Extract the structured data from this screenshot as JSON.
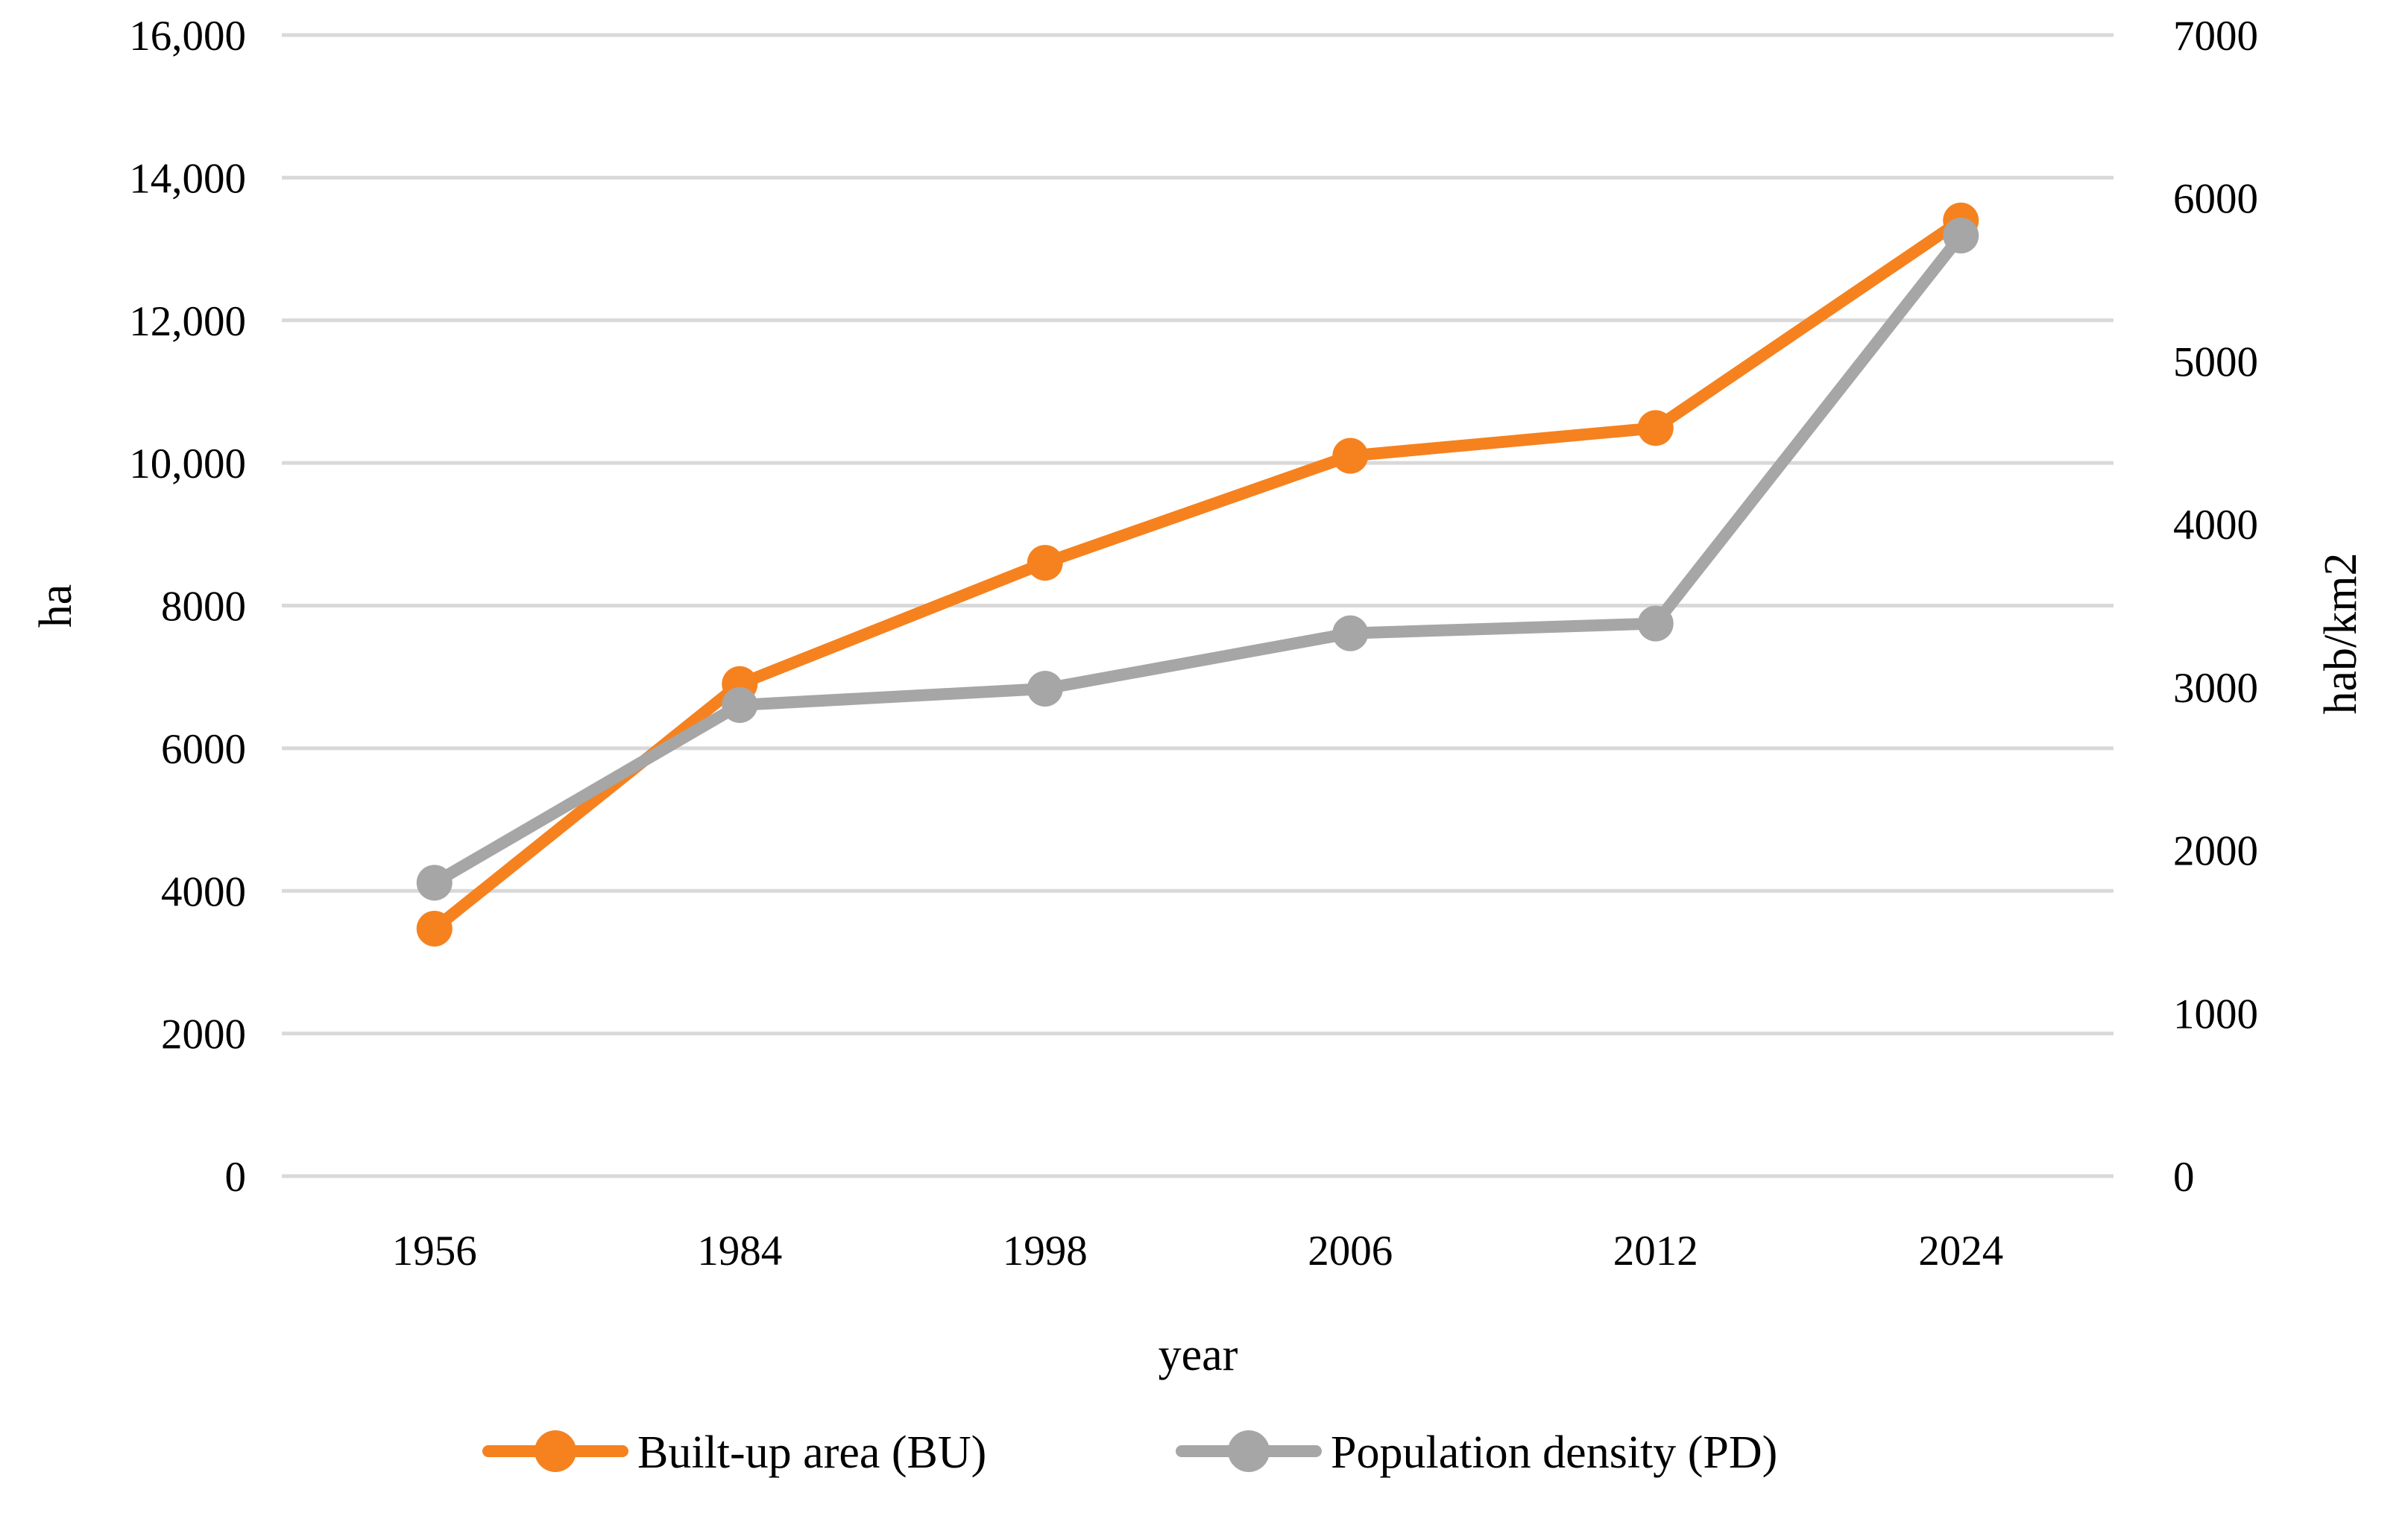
{
  "figure": {
    "x_axis": {
      "title": "year",
      "categories": [
        "1956",
        "1984",
        "1998",
        "2006",
        "2012",
        "2024"
      ]
    },
    "left_axis": {
      "title": "ha",
      "min": 0,
      "max": 16000,
      "step": 2000,
      "tick_labels": [
        "0",
        "2000",
        "4000",
        "6000",
        "8000",
        "10,000",
        "12,000",
        "14,000",
        "16,000"
      ]
    },
    "right_axis": {
      "title": "hab/km2",
      "min": 0,
      "max": 7000,
      "step": 1000,
      "tick_labels": [
        "0",
        "1000",
        "2000",
        "3000",
        "4000",
        "5000",
        "6000",
        "7000"
      ]
    },
    "legend": [
      {
        "label": "Built-up area (BU)",
        "color": "#F5821F"
      },
      {
        "label": "Population density (PD)",
        "color": "#A6A6A6"
      }
    ]
  },
  "chart_data": {
    "type": "line",
    "title": "",
    "xlabel": "year",
    "ylabel_left": "ha",
    "ylabel_right": "hab/km2",
    "categories": [
      1956,
      1984,
      1998,
      2006,
      2012,
      2024
    ],
    "series": [
      {
        "name": "Built-up area (BU)",
        "axis": "left",
        "color": "#F5821F",
        "marker": "circle",
        "values": [
          3470,
          6900,
          8600,
          10100,
          10490,
          13400
        ]
      },
      {
        "name": "Population density (PD)",
        "axis": "right",
        "color": "#A6A6A6",
        "marker": "circle",
        "values": [
          1800,
          2890,
          2990,
          3330,
          3390,
          5770
        ]
      }
    ],
    "left_ylim": [
      0,
      16000
    ],
    "right_ylim": [
      0,
      7000
    ],
    "grid": "horizontal-major",
    "legend_position": "bottom"
  },
  "colors": {
    "orange_series": "#F5821F",
    "gray_series": "#A6A6A6",
    "gridline": "#D9D9D9",
    "text": "#000000",
    "background": "#FFFFFF"
  }
}
